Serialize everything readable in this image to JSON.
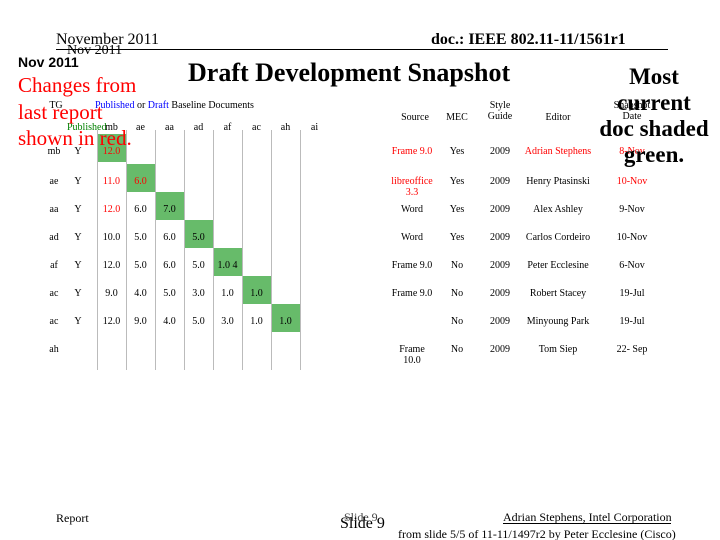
{
  "header": {
    "date": "November 2011",
    "doc_id": "doc.: IEEE 802.11-11/1561r1",
    "date_short": "Nov 2011",
    "date_bold": "Nov 2011"
  },
  "title": "Draft Development Snapshot",
  "changes_note": "Changes from last report shown in red.",
  "most_current_note": "Most current doc shaded green.",
  "table": {
    "tg_header": "TG",
    "published_word": "Published",
    "baseline_or": "or",
    "draft_word": "Draft",
    "baseline_rest": "Baseline Documents",
    "published_col": "Published",
    "baseline_cols": [
      "mb",
      "ae",
      "aa",
      "ad",
      "af",
      "ac",
      "ah",
      "ai"
    ],
    "right_headers": {
      "source": "Source",
      "mec": "MEC",
      "style_guide": "Style Guide",
      "editor": "Editor",
      "snapshot_date": "Snapshot Date"
    },
    "rows": [
      {
        "tg": "mb",
        "pub": "Y",
        "vals": [
          "12.0"
        ],
        "source": "Frame 9.0",
        "mec": "Yes",
        "style": "2009",
        "editor": "Adrian Stephens",
        "date": "8-Nov"
      },
      {
        "tg": "ae",
        "pub": "Y",
        "vals": [
          "11.0",
          "6.0"
        ],
        "source": "libreoffice 3.3",
        "mec": "Yes",
        "style": "2009",
        "editor": "Henry Ptasinski",
        "date": "10-Nov"
      },
      {
        "tg": "aa",
        "pub": "Y",
        "vals": [
          "12.0",
          "6.0",
          "7.0"
        ],
        "source": "Word",
        "mec": "Yes",
        "style": "2009",
        "editor": "Alex Ashley",
        "date": "9-Nov"
      },
      {
        "tg": "ad",
        "pub": "Y",
        "vals": [
          "10.0",
          "5.0",
          "6.0",
          "5.0"
        ],
        "source": "Word",
        "mec": "Yes",
        "style": "2009",
        "editor": "Carlos Cordeiro",
        "date": "10-Nov"
      },
      {
        "tg": "af",
        "pub": "Y",
        "vals": [
          "12.0",
          "5.0",
          "6.0",
          "5.0",
          "1.0 4"
        ],
        "source": "Frame 9.0",
        "mec": "No",
        "style": "2009",
        "editor": "Peter Ecclesine",
        "date": "6-Nov"
      },
      {
        "tg": "ac",
        "pub": "Y",
        "vals": [
          "9.0",
          "4.0",
          "5.0",
          "3.0",
          "1.0",
          "1.0"
        ],
        "source": "Frame 9.0",
        "mec": "No",
        "style": "2009",
        "editor": "Robert Stacey",
        "date": "19-Jul"
      },
      {
        "tg": "ac",
        "pub": "Y",
        "vals": [
          "12.0",
          "9.0",
          "4.0",
          "5.0",
          "3.0",
          "1.0",
          "1.0"
        ],
        "source": "",
        "mec": "No",
        "style": "2009",
        "editor": "Minyoung Park",
        "date": "19-Jul"
      },
      {
        "tg": "ah",
        "pub": "",
        "vals": [],
        "source": "Frame 10.0",
        "mec": "No",
        "style": "2009",
        "editor": "Tom Siep",
        "date": "22- Sep"
      }
    ]
  },
  "footer": {
    "left": "Report",
    "slide_small": "Slide 9",
    "slide": "Slide 9",
    "author": "Adrian Stephens, Intel Corporation",
    "source_note": "from slide 5/5 of 11-11/1497r2 by Peter Ecclesine (Cisco)"
  },
  "colors": {
    "changed_red": "#ff0000",
    "current_green": "#4caf50",
    "published_blue": "#0000ff"
  }
}
